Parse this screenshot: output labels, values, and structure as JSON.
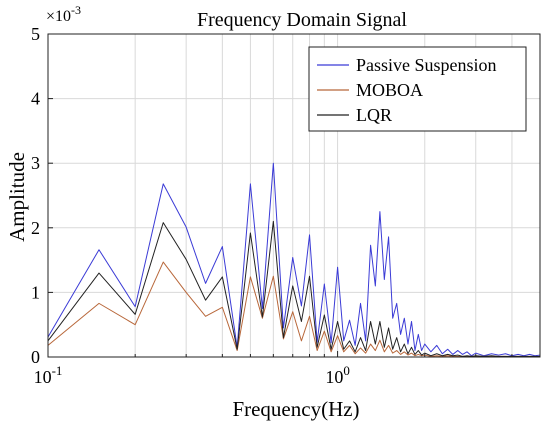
{
  "chart_data": {
    "type": "line",
    "title": "Frequency Domain Signal",
    "xlabel": "Frequency(Hz)",
    "ylabel": "Amplitude",
    "y_multiplier_label": "×10",
    "y_multiplier_exponent": "-3",
    "xscale": "log",
    "xlim": [
      0.1,
      5
    ],
    "ylim": [
      0,
      0.005
    ],
    "x_tick_values": [
      0.1,
      1
    ],
    "x_tick_labels": [
      "10",
      "10"
    ],
    "x_tick_exponents": [
      "-1",
      "0"
    ],
    "y_tick_values": [
      0,
      0.001,
      0.002,
      0.003,
      0.004,
      0.005
    ],
    "y_tick_labels": [
      "0",
      "1",
      "2",
      "3",
      "4",
      "5"
    ],
    "grid": true,
    "legend_position": "top-right",
    "x": [
      0.1,
      0.15,
      0.2,
      0.25,
      0.3,
      0.35,
      0.4,
      0.45,
      0.5,
      0.55,
      0.6,
      0.65,
      0.7,
      0.75,
      0.8,
      0.85,
      0.9,
      0.95,
      1.0,
      1.05,
      1.1,
      1.15,
      1.2,
      1.25,
      1.3,
      1.35,
      1.4,
      1.45,
      1.5,
      1.55,
      1.6,
      1.65,
      1.7,
      1.75,
      1.8,
      1.85,
      1.9,
      1.95,
      2.0,
      2.1,
      2.2,
      2.3,
      2.4,
      2.5,
      2.6,
      2.7,
      2.8,
      2.9,
      3.0,
      3.2,
      3.4,
      3.6,
      3.8,
      4.0,
      4.2,
      4.4,
      4.6,
      4.8,
      5.0
    ],
    "series": [
      {
        "name": "Passive Suspension",
        "color": "#3b3bd6",
        "values": [
          0.00031,
          0.00166,
          0.00078,
          0.00268,
          0.00201,
          0.00114,
          0.00171,
          0.00015,
          0.00268,
          0.00075,
          0.003,
          0.00045,
          0.00154,
          0.00079,
          0.00189,
          0.00023,
          0.00113,
          0.00022,
          0.00139,
          0.00025,
          0.00057,
          0.00018,
          0.00083,
          0.00025,
          0.00173,
          0.0011,
          0.00225,
          0.0012,
          0.00186,
          0.0006,
          0.00083,
          0.00035,
          0.0006,
          0.0002,
          0.00055,
          0.0001,
          0.00035,
          0.0001,
          0.0002,
          8e-05,
          0.00018,
          5e-05,
          0.00012,
          4e-05,
          0.0001,
          4e-05,
          8e-05,
          2e-05,
          6e-05,
          2e-05,
          5e-05,
          3e-05,
          5e-05,
          2e-05,
          4e-05,
          2e-05,
          4e-05,
          2e-05,
          3e-05
        ]
      },
      {
        "name": "MOBOA",
        "color": "#b8673a",
        "values": [
          0.00018,
          0.00083,
          0.0005,
          0.00147,
          0.001,
          0.00063,
          0.00077,
          0.0001,
          0.00124,
          0.0006,
          0.00125,
          0.00028,
          0.0007,
          0.00025,
          0.00063,
          0.0001,
          0.0004,
          8e-05,
          0.00033,
          8e-05,
          0.00018,
          5e-05,
          0.00014,
          6e-05,
          0.0002,
          0.0001,
          0.00026,
          8e-05,
          0.00018,
          6e-05,
          0.0001,
          4e-05,
          8e-05,
          3e-05,
          6e-05,
          2e-05,
          4e-05,
          2e-05,
          3e-05,
          1e-05,
          2e-05,
          1e-05,
          2e-05,
          1e-05,
          1e-05,
          1e-05,
          1e-05,
          1e-05,
          1e-05,
          1e-05,
          1e-05,
          1e-05,
          1e-05,
          0.0,
          1e-05,
          0.0,
          1e-05,
          0.0,
          1e-05
        ]
      },
      {
        "name": "LQR",
        "color": "#222222",
        "values": [
          0.00025,
          0.0013,
          0.00066,
          0.00208,
          0.00151,
          0.00088,
          0.00124,
          0.00012,
          0.00192,
          0.00062,
          0.0021,
          0.0003,
          0.0011,
          0.00055,
          0.00125,
          0.00015,
          0.00065,
          0.00012,
          0.00055,
          0.00012,
          0.00025,
          8e-05,
          0.0003,
          0.0001,
          0.00055,
          0.0002,
          0.00055,
          0.00015,
          0.00045,
          0.00012,
          0.0003,
          8e-05,
          0.0002,
          5e-05,
          0.00015,
          4e-05,
          0.0001,
          3e-05,
          6e-05,
          2e-05,
          5e-05,
          2e-05,
          4e-05,
          2e-05,
          3e-05,
          1e-05,
          2e-05,
          1e-05,
          2e-05,
          1e-05,
          2e-05,
          1e-05,
          1e-05,
          1e-05,
          1e-05,
          1e-05,
          1e-05,
          1e-05,
          1e-05
        ]
      }
    ]
  }
}
